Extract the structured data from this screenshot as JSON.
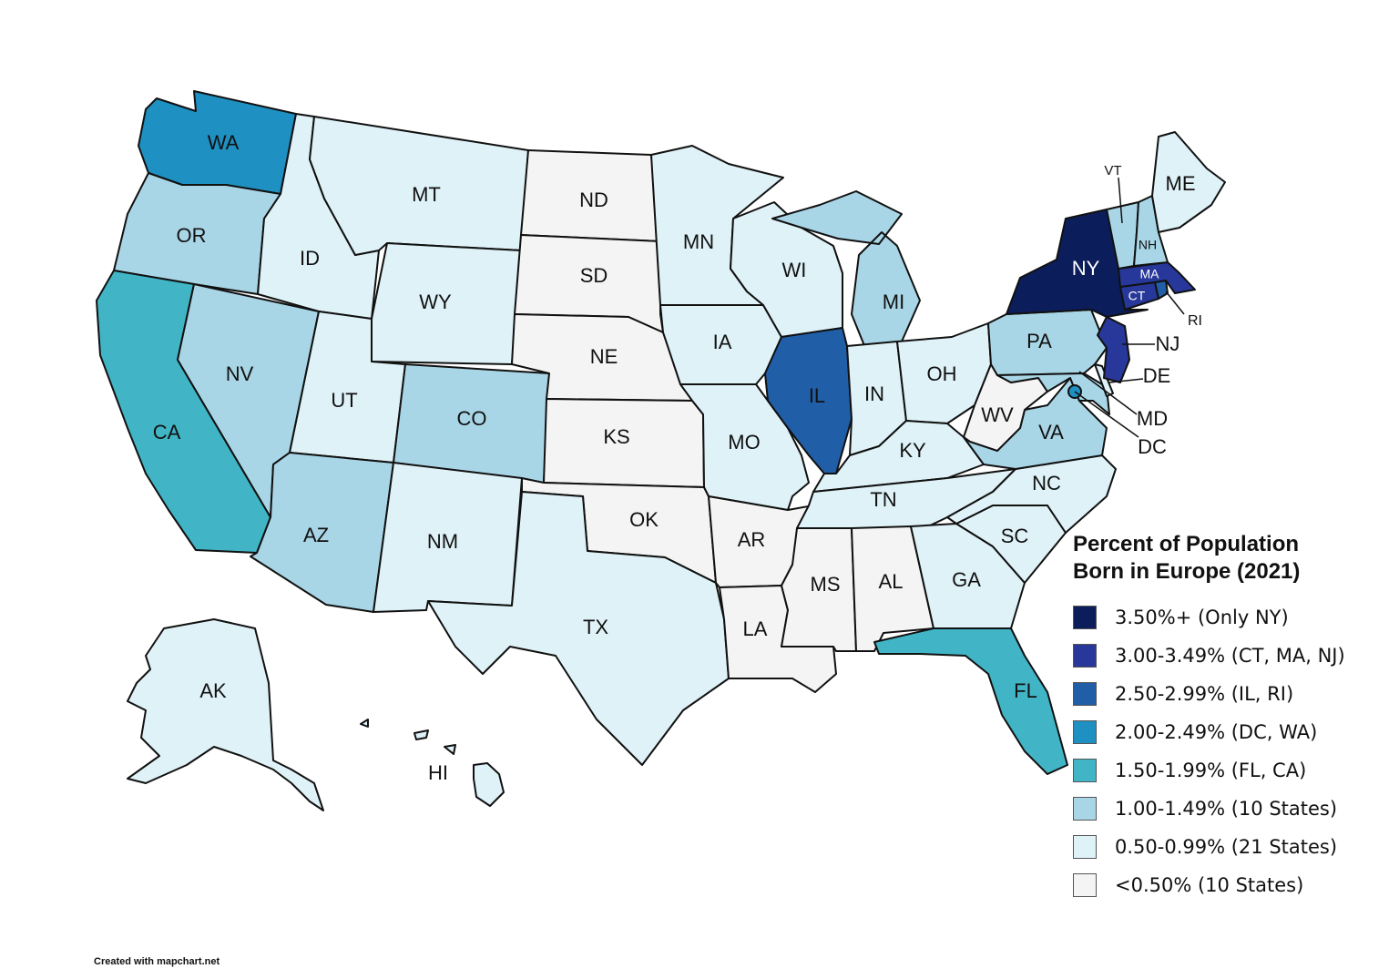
{
  "legend": {
    "title_line1": "Percent of Population",
    "title_line2": "Born in Europe (2021)",
    "items": [
      {
        "label": "3.50%+ (Only NY)",
        "color": "#0c1d5b"
      },
      {
        "label": "3.00-3.49% (CT, MA, NJ)",
        "color": "#27389a"
      },
      {
        "label": "2.50-2.99% (IL, RI)",
        "color": "#215ea8"
      },
      {
        "label": "2.00-2.49% (DC, WA)",
        "color": "#1f90c2"
      },
      {
        "label": "1.50-1.99% (FL, CA)",
        "color": "#41b5c6"
      },
      {
        "label": "1.00-1.49% (10 States)",
        "color": "#a9d6e6"
      },
      {
        "label": "0.50-0.99% (21 States)",
        "color": "#dff2f8"
      },
      {
        "label": "<0.50% (10 States)",
        "color": "#f4f4f4"
      }
    ]
  },
  "states": [
    {
      "code": "WA",
      "tier": 3
    },
    {
      "code": "OR",
      "tier": 5
    },
    {
      "code": "CA",
      "tier": 4
    },
    {
      "code": "ID",
      "tier": 6
    },
    {
      "code": "NV",
      "tier": 5
    },
    {
      "code": "MT",
      "tier": 6
    },
    {
      "code": "WY",
      "tier": 6
    },
    {
      "code": "UT",
      "tier": 6
    },
    {
      "code": "CO",
      "tier": 5
    },
    {
      "code": "AZ",
      "tier": 5
    },
    {
      "code": "NM",
      "tier": 6
    },
    {
      "code": "ND",
      "tier": 7
    },
    {
      "code": "SD",
      "tier": 7
    },
    {
      "code": "NE",
      "tier": 7
    },
    {
      "code": "KS",
      "tier": 7
    },
    {
      "code": "OK",
      "tier": 7
    },
    {
      "code": "TX",
      "tier": 6
    },
    {
      "code": "MN",
      "tier": 6
    },
    {
      "code": "IA",
      "tier": 6
    },
    {
      "code": "MO",
      "tier": 6
    },
    {
      "code": "AR",
      "tier": 7
    },
    {
      "code": "LA",
      "tier": 7
    },
    {
      "code": "WI",
      "tier": 6
    },
    {
      "code": "IL",
      "tier": 2
    },
    {
      "code": "MI",
      "tier": 5
    },
    {
      "code": "IN",
      "tier": 6
    },
    {
      "code": "OH",
      "tier": 6
    },
    {
      "code": "KY",
      "tier": 6
    },
    {
      "code": "TN",
      "tier": 6
    },
    {
      "code": "MS",
      "tier": 7
    },
    {
      "code": "AL",
      "tier": 7
    },
    {
      "code": "GA",
      "tier": 6
    },
    {
      "code": "FL",
      "tier": 4
    },
    {
      "code": "SC",
      "tier": 6
    },
    {
      "code": "NC",
      "tier": 6
    },
    {
      "code": "VA",
      "tier": 5
    },
    {
      "code": "WV",
      "tier": 7
    },
    {
      "code": "MD",
      "tier": 5
    },
    {
      "code": "DE",
      "tier": 6
    },
    {
      "code": "PA",
      "tier": 5
    },
    {
      "code": "NJ",
      "tier": 1
    },
    {
      "code": "NY",
      "tier": 0
    },
    {
      "code": "CT",
      "tier": 1
    },
    {
      "code": "RI",
      "tier": 2
    },
    {
      "code": "MA",
      "tier": 1
    },
    {
      "code": "VT",
      "tier": 5
    },
    {
      "code": "NH",
      "tier": 5
    },
    {
      "code": "ME",
      "tier": 6
    },
    {
      "code": "AK",
      "tier": 6
    },
    {
      "code": "HI",
      "tier": 6
    },
    {
      "code": "DC",
      "tier": 3
    }
  ],
  "credit": "Created with mapchart.net"
}
